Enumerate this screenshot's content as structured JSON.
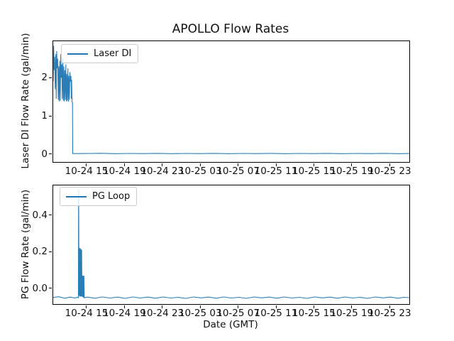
{
  "figure": {
    "title": "APOLLO Flow Rates",
    "xlabel": "Date (GMT)",
    "background_color": "#ffffff",
    "series_color": "#1f77b4",
    "spine_color": "#000000",
    "legend_border_color": "#cccccc"
  },
  "chart_data": [
    {
      "type": "line",
      "name": "laser-di",
      "ylabel": "Laser DI Flow Rate (gal/min)",
      "legend": "Laser DI",
      "legend_position": "upper left",
      "grid": false,
      "xlim": [
        0,
        37.6
      ],
      "ylim": [
        -0.21,
        2.96
      ],
      "yticks": [
        {
          "pos": 0,
          "label": "0"
        },
        {
          "pos": 1,
          "label": "1"
        },
        {
          "pos": 2,
          "label": "2"
        }
      ],
      "xticks": [
        {
          "pos": 3.52,
          "label": "10-24 15"
        },
        {
          "pos": 7.52,
          "label": "10-24 19"
        },
        {
          "pos": 11.52,
          "label": "10-24 23"
        },
        {
          "pos": 15.52,
          "label": "10-25 03"
        },
        {
          "pos": 19.52,
          "label": "10-25 07"
        },
        {
          "pos": 23.52,
          "label": "10-25 11"
        },
        {
          "pos": 27.52,
          "label": "10-25 15"
        },
        {
          "pos": 31.52,
          "label": "10-25 19"
        },
        {
          "pos": 35.52,
          "label": "10-25 23"
        }
      ],
      "points": [
        [
          0.0,
          1.9
        ],
        [
          0.05,
          2.84
        ],
        [
          0.11,
          2.2
        ],
        [
          0.16,
          2.55
        ],
        [
          0.21,
          1.7
        ],
        [
          0.27,
          2.62
        ],
        [
          0.32,
          1.45
        ],
        [
          0.37,
          2.7
        ],
        [
          0.43,
          2.25
        ],
        [
          0.48,
          2.5
        ],
        [
          0.53,
          1.42
        ],
        [
          0.59,
          2.3
        ],
        [
          0.64,
          1.38
        ],
        [
          0.69,
          2.45
        ],
        [
          0.75,
          1.4
        ],
        [
          0.8,
          2.62
        ],
        [
          0.85,
          2.0
        ],
        [
          0.91,
          2.35
        ],
        [
          0.96,
          1.44
        ],
        [
          1.01,
          2.52
        ],
        [
          1.07,
          1.4
        ],
        [
          1.12,
          2.3
        ],
        [
          1.17,
          1.38
        ],
        [
          1.23,
          2.2
        ],
        [
          1.28,
          1.42
        ],
        [
          1.33,
          2.35
        ],
        [
          1.39,
          1.38
        ],
        [
          1.44,
          2.1
        ],
        [
          1.49,
          1.4
        ],
        [
          1.55,
          2.25
        ],
        [
          1.6,
          1.37
        ],
        [
          1.65,
          2.05
        ],
        [
          1.71,
          1.42
        ],
        [
          1.76,
          2.15
        ],
        [
          1.81,
          1.9
        ],
        [
          1.87,
          2.05
        ],
        [
          1.92,
          1.45
        ],
        [
          1.95,
          1.95
        ],
        [
          1.99,
          1.36
        ],
        [
          2.04,
          1.35
        ],
        [
          2.06,
          0.01
        ],
        [
          3.5,
          0.012
        ],
        [
          5,
          0.018
        ],
        [
          6.5,
          0.008
        ],
        [
          8,
          0.014
        ],
        [
          9.5,
          0.01
        ],
        [
          11,
          0.016
        ],
        [
          12.5,
          0.008
        ],
        [
          14,
          0.013
        ],
        [
          15.5,
          0.01
        ],
        [
          17,
          0.016
        ],
        [
          18.5,
          0.008
        ],
        [
          20,
          0.013
        ],
        [
          21.5,
          0.01
        ],
        [
          23,
          0.016
        ],
        [
          24.5,
          0.008
        ],
        [
          26,
          0.013
        ],
        [
          27.5,
          0.01
        ],
        [
          29,
          0.015
        ],
        [
          30.5,
          0.008
        ],
        [
          32,
          0.013
        ],
        [
          33.5,
          0.01
        ],
        [
          35,
          0.015
        ],
        [
          36.5,
          0.009
        ],
        [
          37.6,
          0.012
        ]
      ]
    },
    {
      "type": "line",
      "name": "pg-loop",
      "ylabel": "PG Flow Rate (gal/min)",
      "legend": "PG Loop",
      "legend_position": "upper left",
      "grid": false,
      "xlim": [
        0,
        37.6
      ],
      "ylim": [
        -0.086,
        0.563
      ],
      "yticks": [
        {
          "pos": 0.0,
          "label": "0.0"
        },
        {
          "pos": 0.2,
          "label": "0.2"
        },
        {
          "pos": 0.4,
          "label": "0.4"
        }
      ],
      "xticks": [
        {
          "pos": 3.52,
          "label": "10-24 15"
        },
        {
          "pos": 7.52,
          "label": "10-24 19"
        },
        {
          "pos": 11.52,
          "label": "10-24 23"
        },
        {
          "pos": 15.52,
          "label": "10-25 03"
        },
        {
          "pos": 19.52,
          "label": "10-25 07"
        },
        {
          "pos": 23.52,
          "label": "10-25 11"
        },
        {
          "pos": 27.52,
          "label": "10-25 15"
        },
        {
          "pos": 31.52,
          "label": "10-25 19"
        },
        {
          "pos": 35.52,
          "label": "10-25 23"
        }
      ],
      "points": [
        [
          0.0,
          -0.05
        ],
        [
          0.6,
          -0.046
        ],
        [
          1.2,
          -0.054
        ],
        [
          1.8,
          -0.048
        ],
        [
          2.3,
          -0.053
        ],
        [
          2.55,
          -0.049
        ],
        [
          2.66,
          -0.051
        ],
        [
          2.68,
          0.54
        ],
        [
          2.7,
          0.43
        ],
        [
          2.72,
          -0.04
        ],
        [
          2.76,
          0.22
        ],
        [
          2.8,
          -0.045
        ],
        [
          2.84,
          0.22
        ],
        [
          2.88,
          -0.045
        ],
        [
          2.92,
          0.215
        ],
        [
          2.96,
          -0.045
        ],
        [
          3.0,
          0.21
        ],
        [
          3.04,
          -0.045
        ],
        [
          3.08,
          0.07
        ],
        [
          3.12,
          -0.048
        ],
        [
          3.16,
          0.068
        ],
        [
          3.2,
          -0.05
        ],
        [
          3.24,
          0.07
        ],
        [
          3.28,
          -0.052
        ],
        [
          3.6,
          -0.048
        ],
        [
          4.4,
          -0.054
        ],
        [
          5.2,
          -0.047
        ],
        [
          6.0,
          -0.053
        ],
        [
          6.8,
          -0.048
        ],
        [
          7.6,
          -0.055
        ],
        [
          8.4,
          -0.047
        ],
        [
          9.2,
          -0.053
        ],
        [
          10.0,
          -0.048
        ],
        [
          10.8,
          -0.054
        ],
        [
          11.6,
          -0.047
        ],
        [
          12.4,
          -0.053
        ],
        [
          13.2,
          -0.049
        ],
        [
          14.0,
          -0.055
        ],
        [
          14.8,
          -0.047
        ],
        [
          15.6,
          -0.052
        ],
        [
          16.4,
          -0.048
        ],
        [
          17.2,
          -0.054
        ],
        [
          18.0,
          -0.047
        ],
        [
          18.8,
          -0.053
        ],
        [
          19.6,
          -0.049
        ],
        [
          20.4,
          -0.055
        ],
        [
          21.2,
          -0.047
        ],
        [
          22.0,
          -0.052
        ],
        [
          22.8,
          -0.048
        ],
        [
          23.6,
          -0.054
        ],
        [
          24.4,
          -0.047
        ],
        [
          25.2,
          -0.053
        ],
        [
          26.0,
          -0.049
        ],
        [
          26.8,
          -0.055
        ],
        [
          27.6,
          -0.047
        ],
        [
          28.4,
          -0.052
        ],
        [
          29.2,
          -0.048
        ],
        [
          30.0,
          -0.054
        ],
        [
          30.8,
          -0.047
        ],
        [
          31.6,
          -0.053
        ],
        [
          32.4,
          -0.049
        ],
        [
          33.2,
          -0.055
        ],
        [
          34.0,
          -0.047
        ],
        [
          34.8,
          -0.052
        ],
        [
          35.6,
          -0.048
        ],
        [
          36.4,
          -0.054
        ],
        [
          37.0,
          -0.049
        ],
        [
          37.6,
          -0.051
        ]
      ]
    }
  ]
}
